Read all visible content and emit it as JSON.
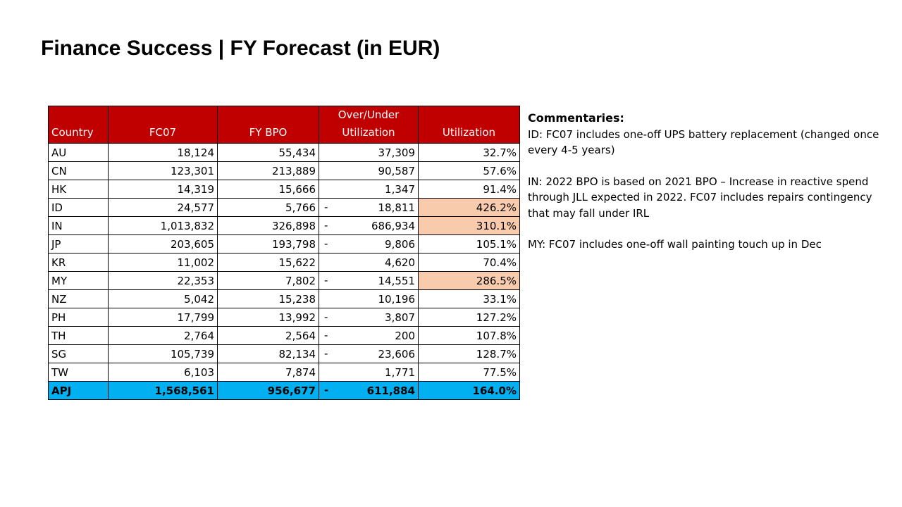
{
  "title": "Finance Success | FY Forecast (in EUR)",
  "table": {
    "headers": [
      "Country",
      "FC07",
      "FY BPO",
      "Over/Under Utilization",
      "Utilization"
    ],
    "rows": [
      {
        "country": "AU",
        "fc07": "18,124",
        "fybpo": "55,434",
        "sign": "",
        "diff": "37,309",
        "util": "32.7%",
        "highlight": false
      },
      {
        "country": "CN",
        "fc07": "123,301",
        "fybpo": "213,889",
        "sign": "",
        "diff": "90,587",
        "util": "57.6%",
        "highlight": false
      },
      {
        "country": "HK",
        "fc07": "14,319",
        "fybpo": "15,666",
        "sign": "",
        "diff": "1,347",
        "util": "91.4%",
        "highlight": false
      },
      {
        "country": "ID",
        "fc07": "24,577",
        "fybpo": "5,766",
        "sign": "-",
        "diff": "18,811",
        "util": "426.2%",
        "highlight": true
      },
      {
        "country": "IN",
        "fc07": "1,013,832",
        "fybpo": "326,898",
        "sign": "-",
        "diff": "686,934",
        "util": "310.1%",
        "highlight": true
      },
      {
        "country": "JP",
        "fc07": "203,605",
        "fybpo": "193,798",
        "sign": "-",
        "diff": "9,806",
        "util": "105.1%",
        "highlight": false
      },
      {
        "country": "KR",
        "fc07": "11,002",
        "fybpo": "15,622",
        "sign": "",
        "diff": "4,620",
        "util": "70.4%",
        "highlight": false
      },
      {
        "country": "MY",
        "fc07": "22,353",
        "fybpo": "7,802",
        "sign": "-",
        "diff": "14,551",
        "util": "286.5%",
        "highlight": true
      },
      {
        "country": "NZ",
        "fc07": "5,042",
        "fybpo": "15,238",
        "sign": "",
        "diff": "10,196",
        "util": "33.1%",
        "highlight": false
      },
      {
        "country": "PH",
        "fc07": "17,799",
        "fybpo": "13,992",
        "sign": "-",
        "diff": "3,807",
        "util": "127.2%",
        "highlight": false
      },
      {
        "country": "TH",
        "fc07": "2,764",
        "fybpo": "2,564",
        "sign": "-",
        "diff": "200",
        "util": "107.8%",
        "highlight": false
      },
      {
        "country": "SG",
        "fc07": "105,739",
        "fybpo": "82,134",
        "sign": "-",
        "diff": "23,606",
        "util": "128.7%",
        "highlight": false
      },
      {
        "country": "TW",
        "fc07": "6,103",
        "fybpo": "7,874",
        "sign": "",
        "diff": "1,771",
        "util": "77.5%",
        "highlight": false
      }
    ],
    "total": {
      "country": "APJ",
      "fc07": "1,568,561",
      "fybpo": "956,677",
      "sign": "-",
      "diff": "611,884",
      "util": "164.0%"
    }
  },
  "commentaries": {
    "heading": "Commentaries:",
    "items": [
      "ID: FC07 includes one-off UPS battery replacement (changed once every 4-5 years)",
      "IN: 2022 BPO is based on 2021 BPO – Increase in reactive spend through JLL expected in 2022. FC07 includes repairs contingency that may fall under IRL",
      "MY: FC07 includes one-off wall painting touch up in Dec"
    ]
  },
  "colors": {
    "header_bg": "#c00000",
    "highlight_bg": "#f8cbad",
    "total_bg": "#00b0f0"
  }
}
